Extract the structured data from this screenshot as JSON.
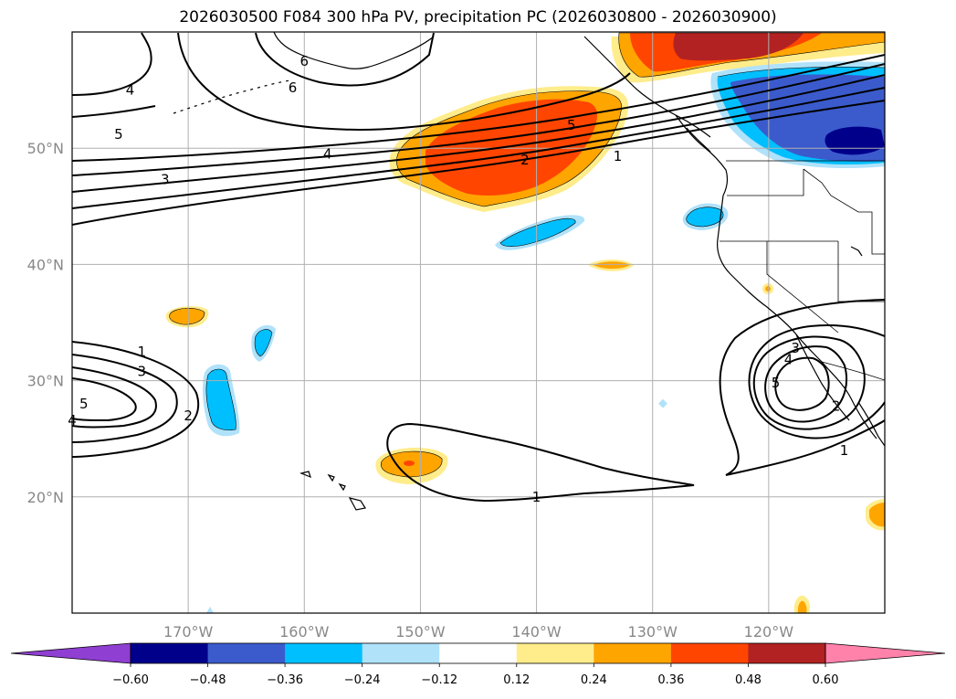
{
  "chart_data": {
    "type": "map",
    "title": "2026030500 F084 300 hPa PV, precipitation PC (2026030800 - 2026030900)",
    "extent": {
      "lon": [
        -180,
        -110
      ],
      "lat": [
        10,
        60
      ]
    },
    "lat_ticks": [
      {
        "v": 50,
        "label": "50°N"
      },
      {
        "v": 40,
        "label": "40°N"
      },
      {
        "v": 30,
        "label": "30°N"
      },
      {
        "v": 20,
        "label": "20°N"
      }
    ],
    "lon_ticks": [
      {
        "v": -170,
        "label": "170°W"
      },
      {
        "v": -160,
        "label": "160°W"
      },
      {
        "v": -150,
        "label": "150°W"
      },
      {
        "v": -140,
        "label": "140°W"
      },
      {
        "v": -130,
        "label": "130°W"
      },
      {
        "v": -120,
        "label": "120°W"
      }
    ],
    "colorbar": {
      "boundaries": [
        -0.72,
        -0.6,
        -0.48,
        -0.36,
        -0.24,
        -0.12,
        0.12,
        0.24,
        0.36,
        0.48,
        0.6,
        0.72
      ],
      "colors": [
        "#8f3fd1",
        "#00008b",
        "#3b5bcc",
        "#00bfff",
        "#b0e2fa",
        "#ffffff",
        "#ffec8b",
        "#ffa500",
        "#ff4500",
        "#b22222",
        "#ff82ab"
      ],
      "tick_labels": [
        "−0.60",
        "−0.48",
        "−0.36",
        "−0.24",
        "−0.12",
        "0.12",
        "0.24",
        "0.36",
        "0.48",
        "0.60"
      ],
      "tick_values": [
        -0.6,
        -0.48,
        -0.36,
        -0.24,
        -0.12,
        0.12,
        0.24,
        0.36,
        0.48,
        0.6
      ],
      "extend": "both"
    },
    "pv_contour_labels": [
      {
        "text": "4",
        "lon": -175,
        "lat": 55
      },
      {
        "text": "6",
        "lon": -160,
        "lat": 57.5
      },
      {
        "text": "6",
        "lon": -161,
        "lat": 55.2
      },
      {
        "text": "5",
        "lon": -176,
        "lat": 51.2
      },
      {
        "text": "4",
        "lon": -158,
        "lat": 49.5
      },
      {
        "text": "3",
        "lon": -172,
        "lat": 47.3
      },
      {
        "text": "5",
        "lon": -137,
        "lat": 52
      },
      {
        "text": "2",
        "lon": -141,
        "lat": 49
      },
      {
        "text": "1",
        "lon": -133,
        "lat": 49.3
      },
      {
        "text": "1",
        "lon": -174,
        "lat": 32.5
      },
      {
        "text": "3",
        "lon": -174,
        "lat": 30.8
      },
      {
        "text": "5",
        "lon": -179,
        "lat": 28
      },
      {
        "text": "4",
        "lon": -180,
        "lat": 26.6
      },
      {
        "text": "2",
        "lon": -170,
        "lat": 27
      },
      {
        "text": "1",
        "lon": -140,
        "lat": 20
      },
      {
        "text": "3",
        "lon": -117.7,
        "lat": 32.8
      },
      {
        "text": "4",
        "lon": -118.3,
        "lat": 31.8
      },
      {
        "text": "5",
        "lon": -119.4,
        "lat": 29.8
      },
      {
        "text": "2",
        "lon": -114.2,
        "lat": 27.8
      },
      {
        "text": "1",
        "lon": -113.5,
        "lat": 24
      }
    ]
  }
}
